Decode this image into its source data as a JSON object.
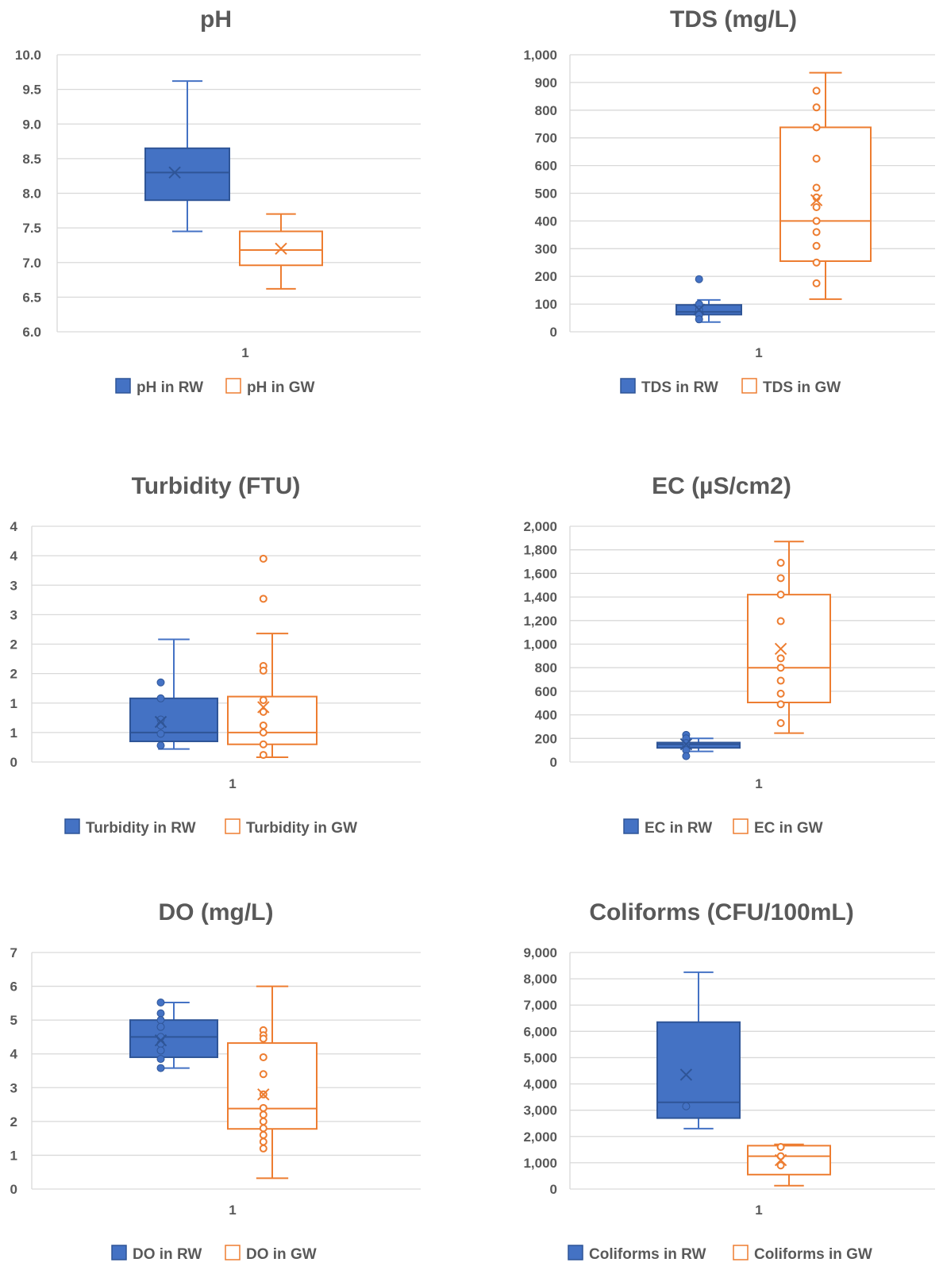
{
  "colors": {
    "rw": "#4472C4",
    "rw_dark": "#2F5597",
    "gw": "#ED7D31",
    "grid": "#D9D9D9"
  },
  "chart_data": [
    {
      "type": "box",
      "title": "pH",
      "category": "1",
      "ylim": [
        6.0,
        10.0
      ],
      "yticks": [
        "6.0",
        "6.5",
        "7.0",
        "7.5",
        "8.0",
        "8.5",
        "9.0",
        "9.5",
        "10.0"
      ],
      "series": [
        {
          "name": "pH in RW",
          "style": "filled",
          "min": 7.45,
          "q1": 7.9,
          "median": 8.3,
          "q3": 8.65,
          "max": 9.62,
          "mean": 8.3,
          "points": []
        },
        {
          "name": "pH in GW",
          "style": "outline",
          "min": 6.62,
          "q1": 6.96,
          "median": 7.18,
          "q3": 7.45,
          "max": 7.7,
          "mean": 7.2,
          "points": []
        }
      ]
    },
    {
      "type": "box",
      "title": "TDS (mg/L)",
      "category": "1",
      "ylim": [
        0,
        1000
      ],
      "yticks": [
        "0",
        "100",
        "200",
        "300",
        "400",
        "500",
        "600",
        "700",
        "800",
        "900",
        "1,000"
      ],
      "series": [
        {
          "name": "TDS in RW",
          "style": "filled",
          "min": 35,
          "q1": 62,
          "median": 72,
          "q3": 97,
          "max": 115,
          "mean": 80,
          "points": [
            190,
            100,
            80,
            60,
            45
          ]
        },
        {
          "name": "TDS in GW",
          "style": "outline",
          "min": 118,
          "q1": 255,
          "median": 400,
          "q3": 738,
          "max": 935,
          "mean": 475,
          "points": [
            870,
            810,
            738,
            625,
            520,
            485,
            450,
            400,
            360,
            310,
            250,
            175
          ]
        }
      ]
    },
    {
      "type": "box",
      "title": "Turbidity (FTU)",
      "category": "1",
      "ylim": [
        0,
        4
      ],
      "yticks": [
        "0",
        "1",
        "1",
        "2",
        "2",
        "3",
        "3",
        "4",
        "4"
      ],
      "series": [
        {
          "name": "Turbidity in RW",
          "style": "filled",
          "min": 0.22,
          "q1": 0.35,
          "median": 0.5,
          "q3": 1.08,
          "max": 2.08,
          "mean": 0.68,
          "points": [
            1.35,
            1.08,
            0.72,
            0.62,
            0.48,
            0.28
          ]
        },
        {
          "name": "Turbidity in GW",
          "style": "outline",
          "min": 0.08,
          "q1": 0.3,
          "median": 0.5,
          "q3": 1.11,
          "max": 2.18,
          "mean": 0.93,
          "points": [
            3.45,
            2.77,
            1.63,
            1.55,
            1.05,
            0.85,
            0.62,
            0.5,
            0.3,
            0.12
          ]
        }
      ]
    },
    {
      "type": "box",
      "title": "EC (µS/cm2)",
      "category": "1",
      "ylim": [
        0,
        2000
      ],
      "yticks": [
        "0",
        "200",
        "400",
        "600",
        "800",
        "1,000",
        "1,200",
        "1,400",
        "1,600",
        "1,800",
        "2,000"
      ],
      "series": [
        {
          "name": "EC in RW",
          "style": "filled",
          "min": 90,
          "q1": 120,
          "median": 150,
          "q3": 165,
          "max": 200,
          "mean": 150,
          "points": [
            230,
            200,
            160,
            130,
            100,
            50
          ]
        },
        {
          "name": "EC in GW",
          "style": "outline",
          "min": 245,
          "q1": 505,
          "median": 800,
          "q3": 1420,
          "max": 1870,
          "mean": 960,
          "points": [
            1690,
            1560,
            1420,
            1195,
            880,
            800,
            690,
            580,
            490,
            330
          ]
        }
      ]
    },
    {
      "type": "box",
      "title": "DO (mg/L)",
      "category": "1",
      "ylim": [
        0,
        7
      ],
      "yticks": [
        "0",
        "1",
        "2",
        "3",
        "4",
        "5",
        "6",
        "7"
      ],
      "series": [
        {
          "name": "DO in RW",
          "style": "filled",
          "min": 3.58,
          "q1": 3.9,
          "median": 4.5,
          "q3": 5.0,
          "max": 5.52,
          "mean": 4.4,
          "points": [
            5.52,
            5.2,
            5.0,
            4.8,
            4.5,
            4.3,
            4.1,
            3.85,
            3.58
          ]
        },
        {
          "name": "DO in GW",
          "style": "outline",
          "min": 0.32,
          "q1": 1.78,
          "median": 2.38,
          "q3": 4.32,
          "max": 6.0,
          "mean": 2.8,
          "points": [
            4.7,
            4.55,
            4.45,
            3.9,
            3.4,
            2.8,
            2.4,
            2.2,
            2.0,
            1.8,
            1.6,
            1.4,
            1.2
          ]
        }
      ]
    },
    {
      "type": "box",
      "title": "Coliforms (CFU/100mL)",
      "category": "1",
      "ylim": [
        0,
        9000
      ],
      "yticks": [
        "0",
        "1,000",
        "2,000",
        "3,000",
        "4,000",
        "5,000",
        "6,000",
        "7,000",
        "8,000",
        "9,000"
      ],
      "series": [
        {
          "name": "Coliforms in RW",
          "style": "filled",
          "min": 2300,
          "q1": 2700,
          "median": 3300,
          "q3": 6350,
          "max": 8250,
          "mean": 4350,
          "points": [
            3150
          ]
        },
        {
          "name": "Coliforms in GW",
          "style": "outline",
          "min": 130,
          "q1": 550,
          "median": 1250,
          "q3": 1650,
          "max": 1700,
          "mean": 1100,
          "points": [
            1600,
            1250,
            900
          ]
        }
      ]
    }
  ]
}
